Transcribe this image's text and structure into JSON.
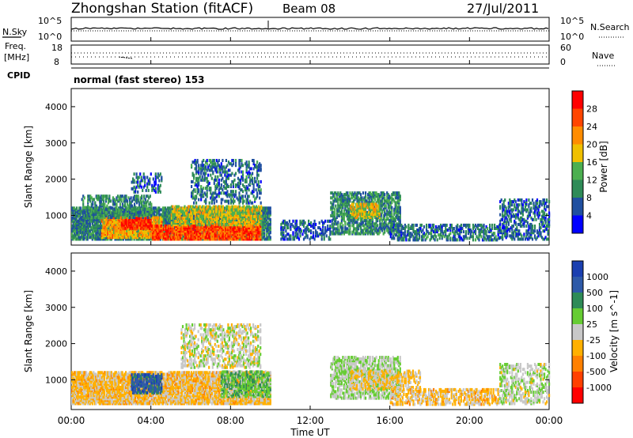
{
  "header": {
    "station_title": "Zhongshan Station (fitACF)",
    "beam": "Beam 08",
    "date": "27/Jul/2011"
  },
  "panel_labels": {
    "nsky": "N.Sky",
    "nsearch": "N.Search",
    "freq_line1": "Freq.",
    "freq_line2": "[MHz]",
    "nave": "Nave",
    "cpid": "CPID",
    "cpid_value": "normal (fast stereo) 153"
  },
  "small_axes": {
    "noise_ticks_left": [
      "10^5",
      "10^0"
    ],
    "noise_ticks_right": [
      "10^5",
      "10^0"
    ],
    "freq_ticks": [
      "18",
      "8"
    ],
    "nave_ticks": [
      "60",
      "0"
    ]
  },
  "colors": {
    "power_scale": [
      "#0000ff",
      "#1f4fa0",
      "#2e8b57",
      "#4caf50",
      "#f0c000",
      "#ff8c00",
      "#ff4500",
      "#ff0000"
    ],
    "velocity_scale": [
      "#1a3fb0",
      "#2e5aa8",
      "#2e8b57",
      "#66cc33",
      "#c8c8c8",
      "#ffb000",
      "#ff8000",
      "#ff4000",
      "#ff0000"
    ],
    "ground_scatter": "#b4b4b4"
  },
  "chart_data": [
    {
      "type": "heatmap",
      "name": "power",
      "xlabel": "Time UT",
      "ylabel": "Slant Range [km]",
      "colorbar_label": "Power [dB]",
      "colorbar_ticks": [
        "4",
        "8",
        "12",
        "16",
        "20",
        "24",
        "28"
      ],
      "xlim": [
        0,
        24
      ],
      "ylim": [
        180,
        4500
      ],
      "xticks": [
        "00:00",
        "04:00",
        "08:00",
        "12:00",
        "16:00",
        "20:00",
        "00:00"
      ],
      "yticks": [
        "1000",
        "2000",
        "3000",
        "4000"
      ],
      "value_range": [
        0,
        32
      ],
      "blobs": [
        {
          "t0": 0.0,
          "t1": 10.0,
          "r0": 300,
          "r1": 1200,
          "density": 0.8,
          "value": 9
        },
        {
          "t0": 1.5,
          "t1": 4.5,
          "r0": 350,
          "r1": 900,
          "density": 0.7,
          "value": 20
        },
        {
          "t0": 2.5,
          "t1": 4.0,
          "r0": 600,
          "r1": 900,
          "density": 0.8,
          "value": 28
        },
        {
          "t0": 4.0,
          "t1": 9.5,
          "r0": 300,
          "r1": 700,
          "density": 0.8,
          "value": 26
        },
        {
          "t0": 5.0,
          "t1": 9.5,
          "r0": 700,
          "r1": 1200,
          "density": 0.6,
          "value": 17
        },
        {
          "t0": 6.0,
          "t1": 9.5,
          "r0": 1300,
          "r1": 2500,
          "density": 0.3,
          "value": 8
        },
        {
          "t0": 3.0,
          "t1": 4.5,
          "r0": 1600,
          "r1": 2100,
          "density": 0.3,
          "value": 6
        },
        {
          "t0": 0.5,
          "t1": 4.0,
          "r0": 900,
          "r1": 1500,
          "density": 0.4,
          "value": 10
        },
        {
          "t0": 10.5,
          "t1": 13.0,
          "r0": 300,
          "r1": 800,
          "density": 0.35,
          "value": 7
        },
        {
          "t0": 13.0,
          "t1": 16.5,
          "r0": 450,
          "r1": 1600,
          "density": 0.5,
          "value": 10
        },
        {
          "t0": 14.0,
          "t1": 15.5,
          "r0": 900,
          "r1": 1300,
          "density": 0.6,
          "value": 18
        },
        {
          "t0": 16.0,
          "t1": 21.5,
          "r0": 280,
          "r1": 700,
          "density": 0.45,
          "value": 8
        },
        {
          "t0": 21.5,
          "t1": 24.0,
          "r0": 300,
          "r1": 1400,
          "density": 0.35,
          "value": 7
        }
      ]
    },
    {
      "type": "heatmap",
      "name": "velocity",
      "xlabel": "Time UT",
      "ylabel": "Slant Range [km]",
      "colorbar_label": "Velocity [m s^-1]",
      "colorbar_ticks": [
        "-1000",
        "-500",
        "-100",
        "-25",
        "25",
        "100",
        "500",
        "1000"
      ],
      "xlim": [
        0,
        24
      ],
      "ylim": [
        180,
        4500
      ],
      "xticks": [
        "00:00",
        "04:00",
        "08:00",
        "12:00",
        "16:00",
        "20:00",
        "00:00"
      ],
      "yticks": [
        "1000",
        "2000",
        "3000",
        "4000"
      ],
      "value_range": [
        -1200,
        1200
      ],
      "blobs": [
        {
          "t0": 0.0,
          "t1": 10.0,
          "r0": 300,
          "r1": 1200,
          "density": 0.8,
          "value": -200
        },
        {
          "t0": 3.0,
          "t1": 4.5,
          "r0": 600,
          "r1": 1100,
          "density": 0.6,
          "value": 800
        },
        {
          "t0": 7.5,
          "t1": 10.0,
          "r0": 500,
          "r1": 1200,
          "density": 0.6,
          "value": 300
        },
        {
          "t0": 5.5,
          "t1": 9.5,
          "r0": 1300,
          "r1": 2500,
          "density": 0.35,
          "value": 0
        },
        {
          "t0": 13.0,
          "t1": 16.5,
          "r0": 450,
          "r1": 1600,
          "density": 0.5,
          "value": 120
        },
        {
          "t0": 14.0,
          "t1": 17.5,
          "r0": 700,
          "r1": 1200,
          "density": 0.4,
          "value": -150
        },
        {
          "t0": 16.0,
          "t1": 21.5,
          "r0": 280,
          "r1": 700,
          "density": 0.45,
          "value": -200
        },
        {
          "t0": 21.5,
          "t1": 24.0,
          "r0": 300,
          "r1": 1400,
          "density": 0.35,
          "value": 80
        }
      ]
    }
  ]
}
